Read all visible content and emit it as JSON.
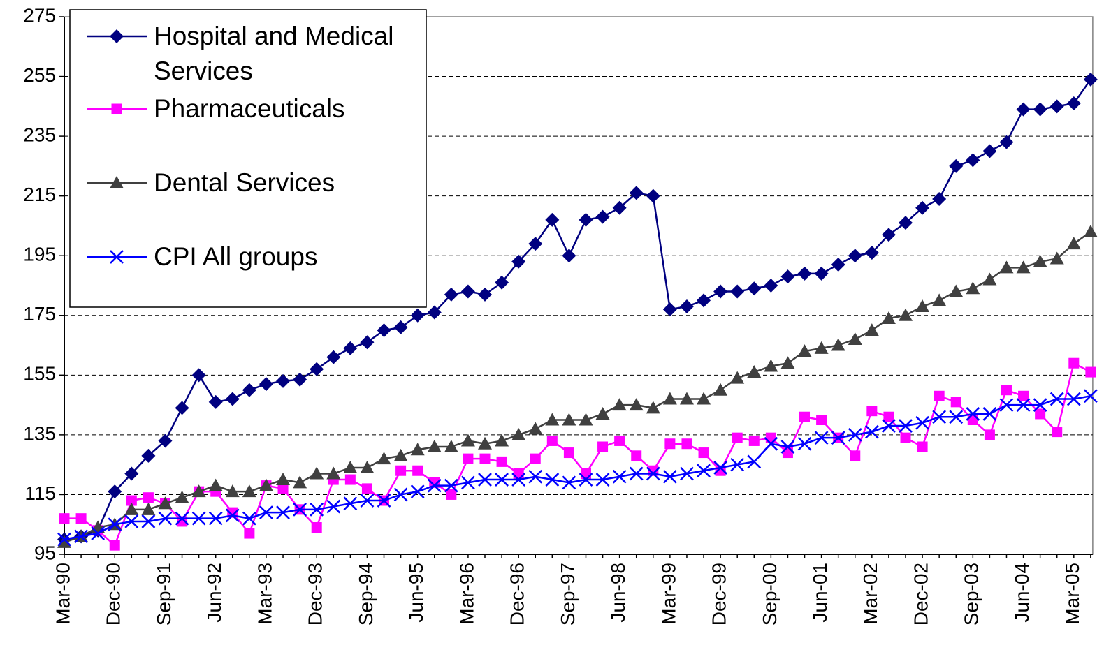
{
  "chart_data": {
    "type": "line",
    "categories": [
      "Mar-90",
      null,
      null,
      "Dec-90",
      null,
      null,
      "Sep-91",
      null,
      null,
      "Jun-92",
      null,
      null,
      "Mar-93",
      null,
      null,
      "Dec-93",
      null,
      null,
      "Sep-94",
      null,
      null,
      "Jun-95",
      null,
      null,
      "Mar-96",
      null,
      null,
      "Dec-96",
      null,
      null,
      "Sep-97",
      null,
      null,
      "Jun-98",
      null,
      null,
      "Mar-99",
      null,
      null,
      "Dec-99",
      null,
      null,
      "Sep-00",
      null,
      null,
      "Jun-01",
      null,
      null,
      "Mar-02",
      null,
      null,
      "Dec-02",
      null,
      null,
      "Sep-03",
      null,
      null,
      "Jun-04",
      null,
      null,
      "Mar-05",
      null
    ],
    "series": [
      {
        "name": "Hospital and Medical Services",
        "color": "#000080",
        "marker": "diamond",
        "values": [
          100,
          101,
          103,
          116,
          122,
          128,
          133,
          144,
          155,
          146,
          147,
          150,
          152,
          153,
          153.5,
          157,
          161,
          164,
          166,
          170,
          171,
          175,
          176,
          182,
          183,
          182,
          186,
          193,
          199,
          207,
          195,
          207,
          208,
          211,
          216,
          215,
          177,
          178,
          180,
          183,
          183,
          184,
          185,
          188,
          189,
          189,
          192,
          195,
          196,
          202,
          206,
          211,
          214,
          225,
          227,
          230,
          233,
          244,
          244,
          245,
          246,
          254
        ]
      },
      {
        "name": "Pharmaceuticals",
        "color": "#ff00ff",
        "marker": "square",
        "values": [
          107,
          107,
          103,
          98,
          113,
          114,
          112,
          106,
          116,
          116,
          109,
          102,
          118,
          117,
          110,
          104,
          120,
          120,
          117,
          113,
          123,
          123,
          119,
          115,
          127,
          127,
          126,
          122,
          127,
          133,
          129,
          122,
          131,
          133,
          128,
          123,
          132,
          132,
          129,
          123,
          134,
          133,
          134,
          129,
          141,
          140,
          134,
          128,
          143,
          141,
          134,
          131,
          148,
          146,
          140,
          135,
          150,
          148,
          142,
          136,
          159,
          156
        ]
      },
      {
        "name": "Dental Services",
        "color": "#404040",
        "marker": "triangle",
        "values": [
          99,
          101,
          104,
          105,
          110,
          110,
          112,
          114,
          116,
          118,
          116,
          116,
          118,
          120,
          119,
          122,
          122,
          124,
          124,
          127,
          128,
          130,
          131,
          131,
          133,
          132,
          133,
          135,
          137,
          140,
          140,
          140,
          142,
          145,
          145,
          144,
          147,
          147,
          147,
          150,
          154,
          156,
          158,
          159,
          163,
          164,
          165,
          167,
          170,
          174,
          175,
          178,
          180,
          183,
          184,
          187,
          191,
          191,
          193,
          194,
          199,
          203
        ]
      },
      {
        "name": "CPI All groups",
        "color": "#0000ff",
        "marker": "x",
        "values": [
          100,
          101,
          102,
          105,
          106,
          106,
          107,
          107,
          107,
          107,
          108,
          107,
          109,
          109,
          110,
          110,
          111,
          112,
          113,
          113,
          115,
          116,
          118,
          118,
          119,
          120,
          120,
          120,
          121,
          120,
          119,
          120,
          120,
          121,
          122,
          122,
          121,
          122,
          123,
          124,
          125,
          126,
          132,
          131,
          132,
          134,
          134,
          135,
          136,
          138,
          138,
          139,
          141,
          141,
          142,
          142,
          145,
          145,
          145,
          147,
          147,
          148
        ]
      }
    ],
    "ylim": [
      95,
      275
    ],
    "yticks": [
      95,
      115,
      135,
      155,
      175,
      195,
      215,
      235,
      255,
      275
    ],
    "grid": true,
    "legend": "upper left"
  }
}
